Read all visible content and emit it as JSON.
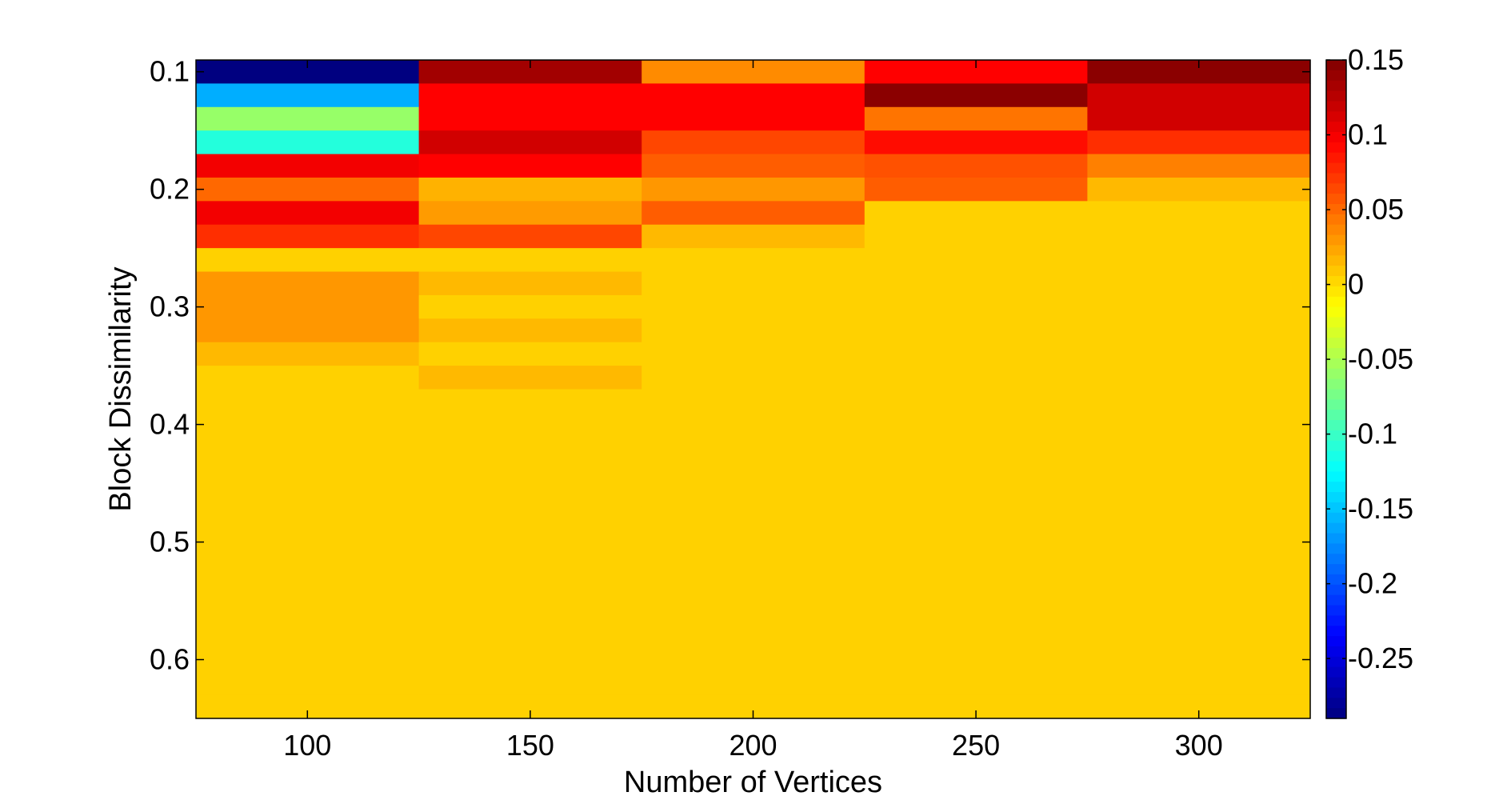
{
  "chart_data": {
    "type": "heatmap",
    "title": "",
    "xlabel": "Number of Vertices",
    "ylabel": "Block Dissimilarity",
    "x": [
      100,
      150,
      200,
      250,
      300
    ],
    "y": [
      0.1,
      0.12,
      0.14,
      0.16,
      0.18,
      0.2,
      0.22,
      0.24,
      0.26,
      0.28,
      0.3,
      0.32,
      0.34,
      0.36,
      0.38,
      0.4,
      0.42,
      0.44,
      0.46,
      0.48,
      0.5,
      0.52,
      0.54,
      0.56,
      0.58,
      0.6,
      0.62,
      0.64
    ],
    "xlim": [
      75,
      325
    ],
    "ylim": [
      0.09,
      0.65
    ],
    "y_reversed": true,
    "xticks": [
      100,
      150,
      200,
      250,
      300
    ],
    "xtick_labels": [
      "100",
      "150",
      "200",
      "250",
      "300"
    ],
    "yticks": [
      0.1,
      0.2,
      0.3,
      0.4,
      0.5,
      0.6
    ],
    "ytick_labels": [
      "0.1",
      "0.2",
      "0.3",
      "0.4",
      "0.5",
      "0.6"
    ],
    "colormap": "jet",
    "clim": [
      -0.29,
      0.15
    ],
    "colorbar_ticks": [
      0.15,
      0.1,
      0.05,
      0,
      -0.05,
      -0.1,
      -0.15,
      -0.2,
      -0.25
    ],
    "colorbar_labels": [
      "0.15",
      "0.1",
      "0.05",
      "0",
      "-0.05",
      "-0.1",
      "-0.15",
      "-0.2",
      "-0.25"
    ],
    "values": [
      [
        -0.29,
        0.135,
        0.035,
        0.095,
        0.145
      ],
      [
        -0.16,
        0.095,
        0.095,
        0.145,
        0.115
      ],
      [
        -0.06,
        0.095,
        0.095,
        0.045,
        0.115
      ],
      [
        -0.11,
        0.115,
        0.065,
        0.09,
        0.075
      ],
      [
        0.1,
        0.095,
        0.055,
        0.06,
        0.04
      ],
      [
        0.05,
        0.018,
        0.03,
        0.055,
        0.015
      ],
      [
        0.1,
        0.028,
        0.055,
        0.005,
        0.005
      ],
      [
        0.075,
        0.065,
        0.015,
        0.005,
        0.005
      ],
      [
        0.005,
        0.005,
        0.005,
        0.005,
        0.005
      ],
      [
        0.03,
        0.015,
        0.005,
        0.005,
        0.005
      ],
      [
        0.03,
        0.005,
        0.005,
        0.005,
        0.005
      ],
      [
        0.03,
        0.015,
        0.005,
        0.005,
        0.005
      ],
      [
        0.015,
        0.005,
        0.005,
        0.005,
        0.005
      ],
      [
        0.005,
        0.015,
        0.005,
        0.005,
        0.005
      ],
      [
        0.005,
        0.005,
        0.005,
        0.005,
        0.005
      ],
      [
        0.005,
        0.005,
        0.005,
        0.005,
        0.005
      ],
      [
        0.005,
        0.005,
        0.005,
        0.005,
        0.005
      ],
      [
        0.005,
        0.005,
        0.005,
        0.005,
        0.005
      ],
      [
        0.005,
        0.005,
        0.005,
        0.005,
        0.005
      ],
      [
        0.005,
        0.005,
        0.005,
        0.005,
        0.005
      ],
      [
        0.005,
        0.005,
        0.005,
        0.005,
        0.005
      ],
      [
        0.005,
        0.005,
        0.005,
        0.005,
        0.005
      ],
      [
        0.005,
        0.005,
        0.005,
        0.005,
        0.005
      ],
      [
        0.005,
        0.005,
        0.005,
        0.005,
        0.005
      ],
      [
        0.005,
        0.005,
        0.005,
        0.005,
        0.005
      ],
      [
        0.005,
        0.005,
        0.005,
        0.005,
        0.005
      ],
      [
        0.005,
        0.005,
        0.005,
        0.005,
        0.005
      ],
      [
        0.005,
        0.005,
        0.005,
        0.005,
        0.005
      ]
    ],
    "grid": false,
    "colorbar_position": "right"
  }
}
